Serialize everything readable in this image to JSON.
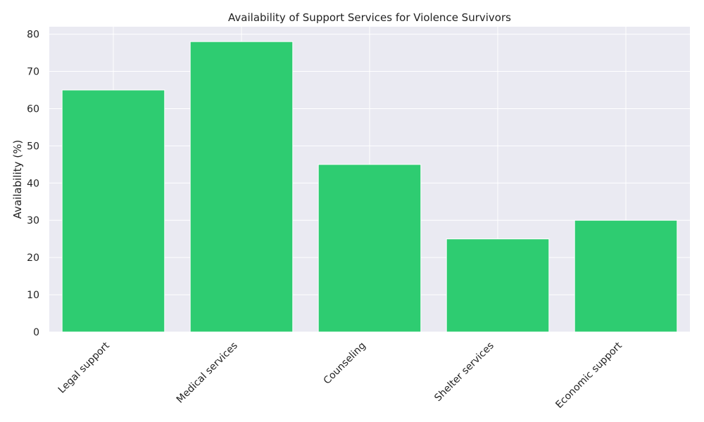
{
  "chart_data": {
    "type": "bar",
    "title": "Availability of Support Services for Violence Survivors",
    "xlabel": "",
    "ylabel": "Availability (%)",
    "categories": [
      "Legal support",
      "Medical services",
      "Counseling",
      "Shelter services",
      "Economic support"
    ],
    "values": [
      65,
      78,
      45,
      25,
      30
    ],
    "ylim": [
      0,
      82
    ],
    "yticks": [
      "0",
      "10",
      "20",
      "30",
      "40",
      "50",
      "60",
      "70",
      "80"
    ],
    "grid": true,
    "legend": "none",
    "bar_color": "#2ecc71",
    "plot_background": "#eaeaf2",
    "grid_color": "#ffffff"
  }
}
